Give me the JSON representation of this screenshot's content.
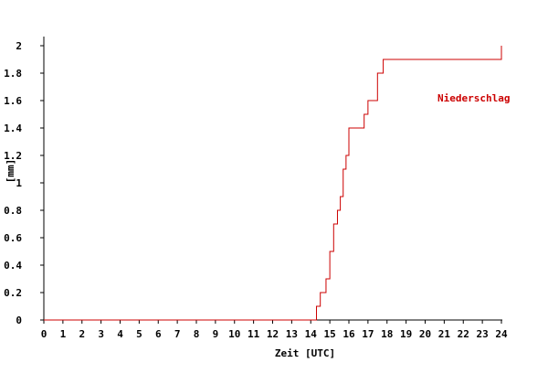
{
  "chart_data": {
    "type": "line",
    "line_shape": "step",
    "xlabel": "Zeit [UTC]",
    "ylabel": "[mm]",
    "xlim": [
      0,
      24
    ],
    "ylim": [
      0,
      2
    ],
    "x_ticks": [
      "0",
      "1",
      "2",
      "3",
      "4",
      "5",
      "6",
      "7",
      "8",
      "9",
      "10",
      "11",
      "12",
      "13",
      "14",
      "15",
      "16",
      "17",
      "18",
      "19",
      "20",
      "21",
      "22",
      "23",
      "24"
    ],
    "y_ticks": [
      "0",
      "0.2",
      "0.4",
      "0.6",
      "0.8",
      "1",
      "1.2",
      "1.4",
      "1.6",
      "1.8",
      "2"
    ],
    "grid": false,
    "legend_position": "right",
    "series": [
      {
        "name": "Niederschlag",
        "color": "#cc0000",
        "x": [
          0,
          14.3,
          14.5,
          14.8,
          15.0,
          15.2,
          15.4,
          15.55,
          15.7,
          15.85,
          16.0,
          16.8,
          17.0,
          17.5,
          17.8,
          24
        ],
        "y": [
          0,
          0.1,
          0.2,
          0.3,
          0.5,
          0.7,
          0.8,
          0.9,
          1.1,
          1.2,
          1.4,
          1.5,
          1.6,
          1.8,
          1.9,
          2.0
        ]
      }
    ]
  }
}
